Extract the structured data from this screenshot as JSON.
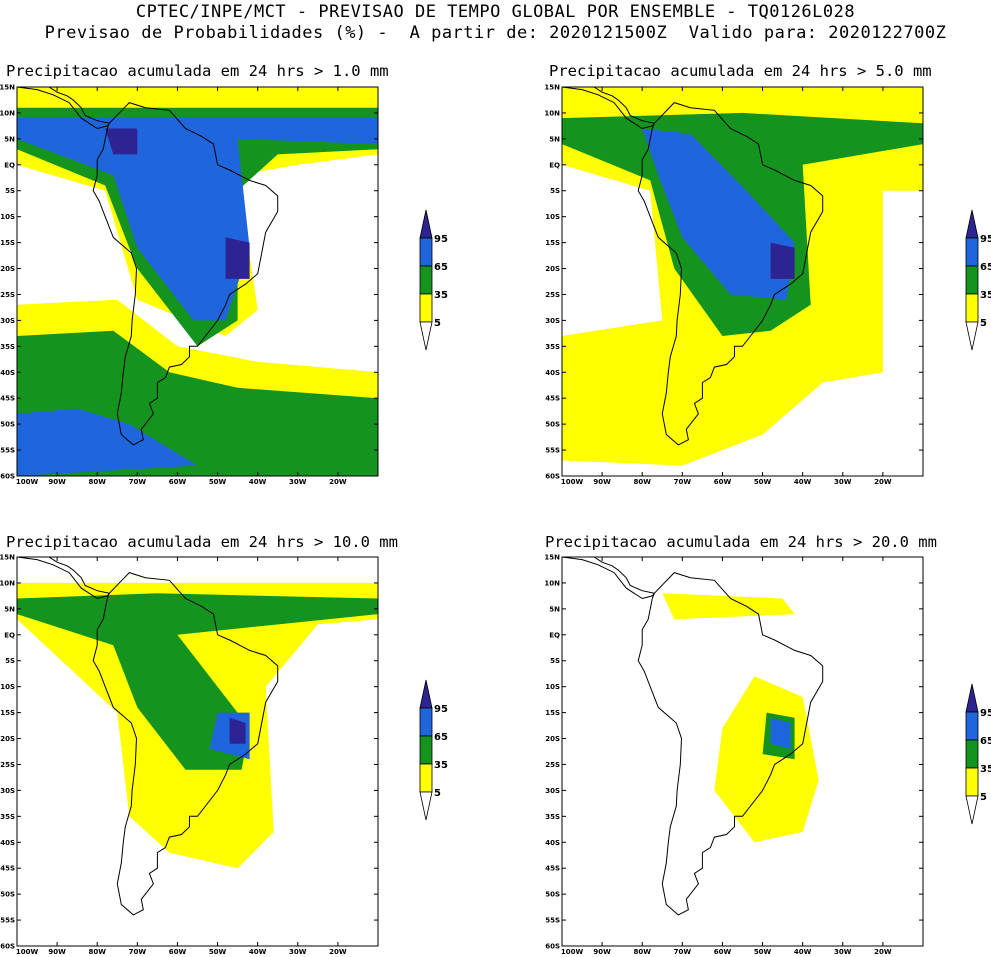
{
  "header": {
    "line1": "CPTEC/INPE/MCT - PREVISAO DE TEMPO GLOBAL POR ENSEMBLE - TQ0126L028",
    "line2": "Previsao de Probabilidades (%) -  A partir de: 2020121500Z  Valido para: 2020122700Z"
  },
  "colors": {
    "c5": "#ffff00",
    "c35": "#14941e",
    "c65": "#1f66dc",
    "c95": "#2d2392",
    "coast": "#000000"
  },
  "lat_labels": [
    "15N",
    "10N",
    "5N",
    "EQ",
    "5S",
    "10S",
    "15S",
    "20S",
    "25S",
    "30S",
    "35S",
    "40S",
    "45S",
    "50S",
    "55S",
    "60S"
  ],
  "lon_labels": [
    "100W",
    "90W",
    "80W",
    "70W",
    "60W",
    "50W",
    "40W",
    "30W",
    "20W"
  ],
  "colorbar_labels": [
    "95",
    "65",
    "35",
    "5"
  ],
  "panels": [
    {
      "title": "Precipitacao acumulada em 24 hrs > 1.0 mm",
      "threshold": 1.0
    },
    {
      "title": "Precipitacao acumulada em 24 hrs > 5.0 mm",
      "threshold": 5.0
    },
    {
      "title": "Precipitacao acumulada em 24 hrs > 10.0 mm",
      "threshold": 10.0
    },
    {
      "title": "Precipitacao acumulada em 24 hrs > 20.0 mm",
      "threshold": 20.0
    }
  ]
}
